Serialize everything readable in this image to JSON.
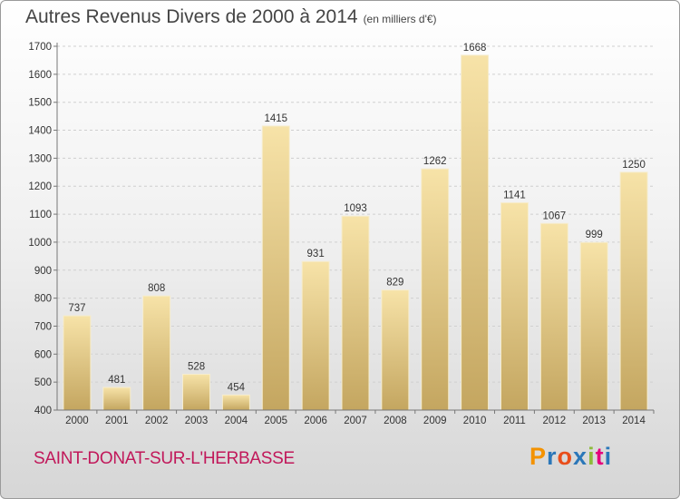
{
  "title": "Autres Revenus Divers de 2000 à 2014",
  "subtitle": "(en milliers d'€)",
  "place": "SAINT-DONAT-SUR-L'HERBASSE",
  "logo": {
    "text": "Proxiti",
    "colors": [
      "#f39200",
      "#2b77b9",
      "#e94e1b",
      "#2b77b9",
      "#8dbb3b",
      "#e5007d",
      "#2b77b9"
    ]
  },
  "colors": {
    "bar_top": "#f7e3a8",
    "bar_bottom": "#c4a660",
    "bar_edge": "#f6edcf",
    "place": "#c1185a"
  },
  "chart_data": {
    "type": "bar",
    "categories": [
      "2000",
      "2001",
      "2002",
      "2003",
      "2004",
      "2005",
      "2006",
      "2007",
      "2008",
      "2009",
      "2010",
      "2011",
      "2012",
      "2013",
      "2014"
    ],
    "values": [
      737,
      481,
      808,
      528,
      454,
      1415,
      931,
      1093,
      829,
      1262,
      1668,
      1141,
      1067,
      999,
      1250
    ],
    "ylim": [
      400,
      1700
    ],
    "yticks": [
      400,
      500,
      600,
      700,
      800,
      900,
      1000,
      1100,
      1200,
      1300,
      1400,
      1500,
      1600,
      1700
    ],
    "grid": true,
    "title": "Autres Revenus Divers de 2000 à 2014",
    "xlabel": "",
    "ylabel": "(en milliers d'€)"
  }
}
